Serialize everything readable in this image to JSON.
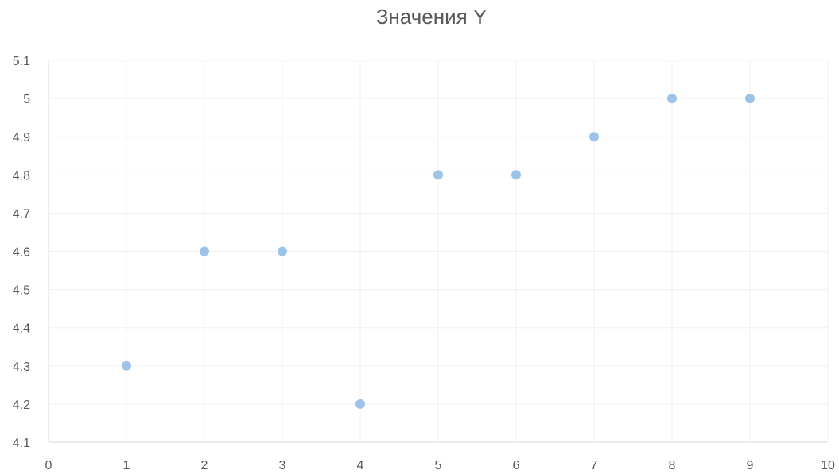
{
  "chart_data": {
    "type": "scatter",
    "title": "Значения Y",
    "xlabel": "",
    "ylabel": "",
    "xlim": [
      0,
      10
    ],
    "ylim": [
      4.1,
      5.1
    ],
    "x_ticks": [
      0,
      1,
      2,
      3,
      4,
      5,
      6,
      7,
      8,
      9,
      10
    ],
    "y_ticks": [
      4.1,
      4.2,
      4.3,
      4.4,
      4.5,
      4.6,
      4.7,
      4.8,
      4.9,
      5,
      5.1
    ],
    "grid": true,
    "legend": false,
    "marker_color": "#9dc3e6",
    "series": [
      {
        "x": [
          1,
          2,
          3,
          4,
          5,
          6,
          7,
          8,
          9
        ],
        "y": [
          4.3,
          4.6,
          4.6,
          4.2,
          4.8,
          4.8,
          4.9,
          5.0,
          5.0
        ]
      }
    ]
  }
}
